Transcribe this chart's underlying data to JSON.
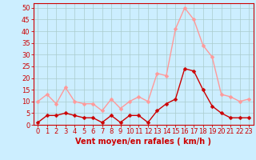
{
  "hours": [
    0,
    1,
    2,
    3,
    4,
    5,
    6,
    7,
    8,
    9,
    10,
    11,
    12,
    13,
    14,
    15,
    16,
    17,
    18,
    19,
    20,
    21,
    22,
    23
  ],
  "wind_avg": [
    1,
    4,
    4,
    5,
    4,
    3,
    3,
    1,
    4,
    1,
    4,
    4,
    1,
    6,
    9,
    11,
    24,
    23,
    15,
    8,
    5,
    3,
    3,
    3
  ],
  "wind_gust": [
    10,
    13,
    9,
    16,
    10,
    9,
    9,
    6,
    11,
    7,
    10,
    12,
    10,
    22,
    21,
    41,
    50,
    45,
    34,
    29,
    13,
    12,
    10,
    11
  ],
  "avg_color": "#cc0000",
  "gust_color": "#ff9999",
  "bg_color": "#cceeff",
  "grid_color": "#aacccc",
  "xlabel": "Vent moyen/en rafales ( km/h )",
  "ylim": [
    0,
    52
  ],
  "yticks": [
    0,
    5,
    10,
    15,
    20,
    25,
    30,
    35,
    40,
    45,
    50
  ],
  "markersize": 2.5,
  "linewidth": 1.0,
  "xlabel_fontsize": 7,
  "tick_fontsize": 6
}
